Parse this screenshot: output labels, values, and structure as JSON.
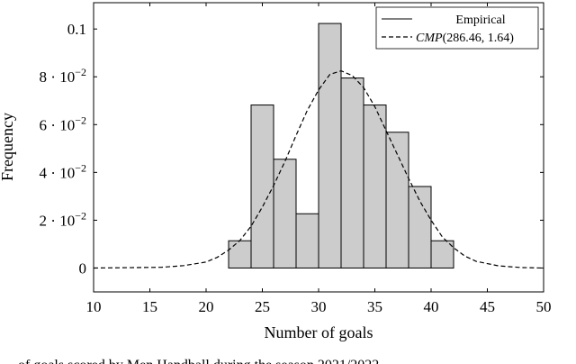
{
  "chart_data": {
    "type": "bar",
    "title": "",
    "xlabel": "Number of goals",
    "ylabel": "Frequency",
    "xlim": [
      10,
      50
    ],
    "ylim": [
      -0.01,
      0.111
    ],
    "x_ticks": [
      {
        "value": 10,
        "label": "10"
      },
      {
        "value": 15,
        "label": "15"
      },
      {
        "value": 20,
        "label": "20"
      },
      {
        "value": 25,
        "label": "25"
      },
      {
        "value": 30,
        "label": "30"
      },
      {
        "value": 35,
        "label": "35"
      },
      {
        "value": 40,
        "label": "40"
      },
      {
        "value": 45,
        "label": "45"
      },
      {
        "value": 50,
        "label": "50"
      }
    ],
    "y_ticks": [
      {
        "value": 0,
        "label": "0"
      },
      {
        "value": 0.02,
        "label": "2 · 10",
        "exp": "−2"
      },
      {
        "value": 0.04,
        "label": "4 · 10",
        "exp": "−2"
      },
      {
        "value": 0.06,
        "label": "6 · 10",
        "exp": "−2"
      },
      {
        "value": 0.08,
        "label": "8 · 10",
        "exp": "−2"
      },
      {
        "value": 0.1,
        "label": "0.1"
      }
    ],
    "grid": false,
    "legend_position": "top-right",
    "series": [
      {
        "name": "Empirical",
        "kind": "histogram",
        "bin_edges": [
          22,
          24,
          26,
          28,
          30,
          32,
          34,
          36,
          38,
          40,
          42
        ],
        "values": [
          0.0114,
          0.0682,
          0.0455,
          0.0227,
          0.1023,
          0.0795,
          0.0682,
          0.0568,
          0.0341,
          0.0114
        ],
        "fill": "#cccccc",
        "stroke": "#000000"
      },
      {
        "name": "CMP(286.46, 1.64)",
        "name_math": "CMP",
        "name_args": "(286.46, 1.64)",
        "kind": "curve",
        "style": "dashed",
        "x": [
          10,
          16,
          18,
          20,
          21,
          22,
          23,
          24,
          25,
          26,
          27,
          28,
          29,
          30,
          31,
          32,
          33,
          34,
          35,
          36,
          37,
          38,
          39,
          40,
          41,
          42,
          43,
          44,
          46,
          48,
          50
        ],
        "y": [
          0.0,
          0.0003,
          0.001,
          0.0025,
          0.0045,
          0.0075,
          0.0115,
          0.0175,
          0.0255,
          0.0345,
          0.0445,
          0.0555,
          0.066,
          0.0745,
          0.081,
          0.0825,
          0.0805,
          0.0755,
          0.0675,
          0.0575,
          0.0475,
          0.0375,
          0.028,
          0.02,
          0.013,
          0.0085,
          0.005,
          0.0028,
          0.0009,
          0.0002,
          0.0
        ],
        "stroke": "#000000"
      }
    ]
  },
  "caption": {
    "text": "… of goals scored by Men Handball during the season 2021/2022 …"
  }
}
